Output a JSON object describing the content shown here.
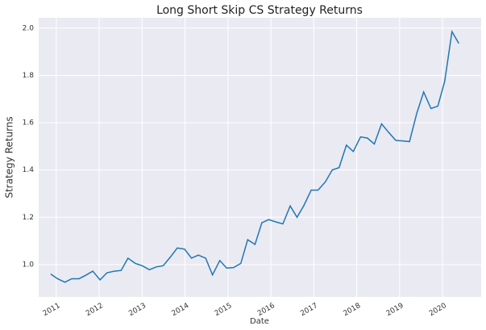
{
  "chart_data": {
    "type": "line",
    "title": "Long Short Skip CS Strategy Returns",
    "xlabel": "Date",
    "ylabel": "Strategy Returns",
    "x": [
      2010.87,
      2011.03,
      2011.2,
      2011.36,
      2011.53,
      2011.69,
      2011.85,
      2012.02,
      2012.18,
      2012.35,
      2012.51,
      2012.67,
      2012.84,
      2013.0,
      2013.17,
      2013.33,
      2013.49,
      2013.66,
      2013.82,
      2013.99,
      2014.15,
      2014.31,
      2014.48,
      2014.64,
      2014.81,
      2014.97,
      2015.13,
      2015.3,
      2015.46,
      2015.63,
      2015.79,
      2015.95,
      2016.12,
      2016.28,
      2016.45,
      2016.61,
      2016.77,
      2016.94,
      2017.1,
      2017.27,
      2017.43,
      2017.59,
      2017.76,
      2017.92,
      2018.09,
      2018.25,
      2018.41,
      2018.58,
      2018.74,
      2018.91,
      2019.07,
      2019.23,
      2019.4,
      2019.56,
      2019.73,
      2019.89,
      2020.05,
      2020.22,
      2020.38
    ],
    "series": [
      {
        "name": "Strategy Returns",
        "color": "#1f77b4",
        "values": [
          0.96,
          0.94,
          0.925,
          0.94,
          0.94,
          0.955,
          0.972,
          0.935,
          0.965,
          0.972,
          0.975,
          1.027,
          1.005,
          0.995,
          0.978,
          0.99,
          0.995,
          1.032,
          1.07,
          1.065,
          1.027,
          1.04,
          1.027,
          0.956,
          1.017,
          0.985,
          0.987,
          1.005,
          1.105,
          1.085,
          1.177,
          1.19,
          1.18,
          1.172,
          1.248,
          1.2,
          1.25,
          1.315,
          1.315,
          1.35,
          1.4,
          1.41,
          1.505,
          1.478,
          1.54,
          1.535,
          1.51,
          1.595,
          1.56,
          1.525,
          1.523,
          1.52,
          1.64,
          1.73,
          1.66,
          1.67,
          1.775,
          1.985,
          1.935
        ]
      }
    ],
    "xlim": [
      2010.59,
      2020.9
    ],
    "ylim": [
      0.863,
      2.044
    ],
    "xticks": [
      2011,
      2012,
      2013,
      2014,
      2015,
      2016,
      2017,
      2018,
      2019,
      2020
    ],
    "yticks": [
      {
        "value": 1,
        "label": "1.0"
      },
      1.2,
      1.4,
      1.6,
      1.8,
      {
        "value": 2,
        "label": "2.0"
      }
    ],
    "grid": true
  }
}
